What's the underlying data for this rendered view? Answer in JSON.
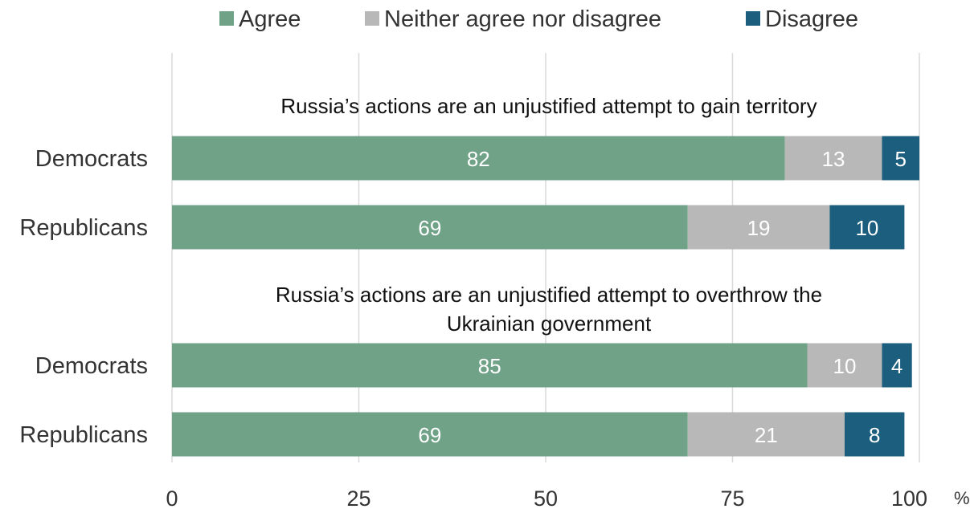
{
  "chart_data": {
    "type": "bar",
    "orientation": "horizontal",
    "stacked": true,
    "title": "",
    "xlabel": "",
    "ylabel": "",
    "xlim": [
      0,
      100
    ],
    "x_ticks": [
      "0",
      "25",
      "50",
      "75",
      "100"
    ],
    "x_unit": "%",
    "grid": true,
    "legend_placement": "top",
    "groups": [
      {
        "title": "Russia’s actions are an unjustified attempt to gain territory",
        "categories": [
          "Democrats",
          "Republicans"
        ],
        "series": [
          {
            "name": "Agree",
            "values": [
              82,
              69
            ]
          },
          {
            "name": "Neither agree nor disagree",
            "values": [
              13,
              19
            ]
          },
          {
            "name": "Disagree",
            "values": [
              5,
              10
            ]
          }
        ]
      },
      {
        "title": "Russia’s actions are an unjustified attempt to overthrow the Ukrainian government",
        "title_lines": [
          "Russia’s actions are an unjustified attempt to overthrow the",
          "Ukrainian government"
        ],
        "categories": [
          "Democrats",
          "Republicans"
        ],
        "series": [
          {
            "name": "Agree",
            "values": [
              85,
              69
            ]
          },
          {
            "name": "Neither agree nor disagree",
            "values": [
              10,
              21
            ]
          },
          {
            "name": "Disagree",
            "values": [
              4,
              8
            ]
          }
        ]
      }
    ],
    "legend": [
      {
        "name": "Agree",
        "color": "#6fa287"
      },
      {
        "name": "Neither agree nor disagree",
        "color": "#b8b8b8"
      },
      {
        "name": "Disagree",
        "color": "#1b5e7e"
      }
    ],
    "colors": {
      "Agree": "#6fa287",
      "Neither agree nor disagree": "#b8b8b8",
      "Disagree": "#1b5e7e",
      "label_text": "#ffffff",
      "axis_text": "#333333",
      "grid": "#d9d9d9"
    }
  }
}
